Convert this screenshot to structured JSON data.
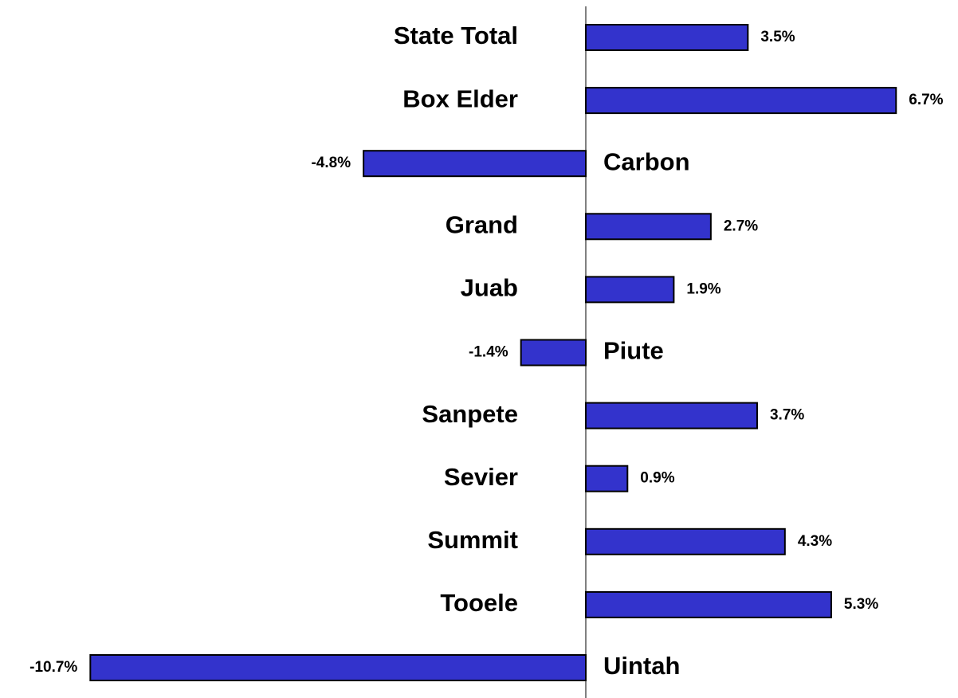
{
  "chart_data": {
    "type": "bar",
    "orientation": "horizontal",
    "categories": [
      "State Total",
      "Box Elder",
      "Carbon",
      "Grand",
      "Juab",
      "Piute",
      "Sanpete",
      "Sevier",
      "Summit",
      "Tooele",
      "Uintah"
    ],
    "values": [
      3.5,
      6.7,
      -4.8,
      2.7,
      1.9,
      -1.4,
      3.7,
      0.9,
      4.3,
      5.3,
      -10.7
    ],
    "value_labels": [
      "3.5%",
      "6.7%",
      "-4.8%",
      "2.7%",
      "1.9%",
      "-1.4%",
      "3.7%",
      "0.9%",
      "4.3%",
      "5.3%",
      "-10.7%"
    ],
    "color": "#3333cc"
  }
}
